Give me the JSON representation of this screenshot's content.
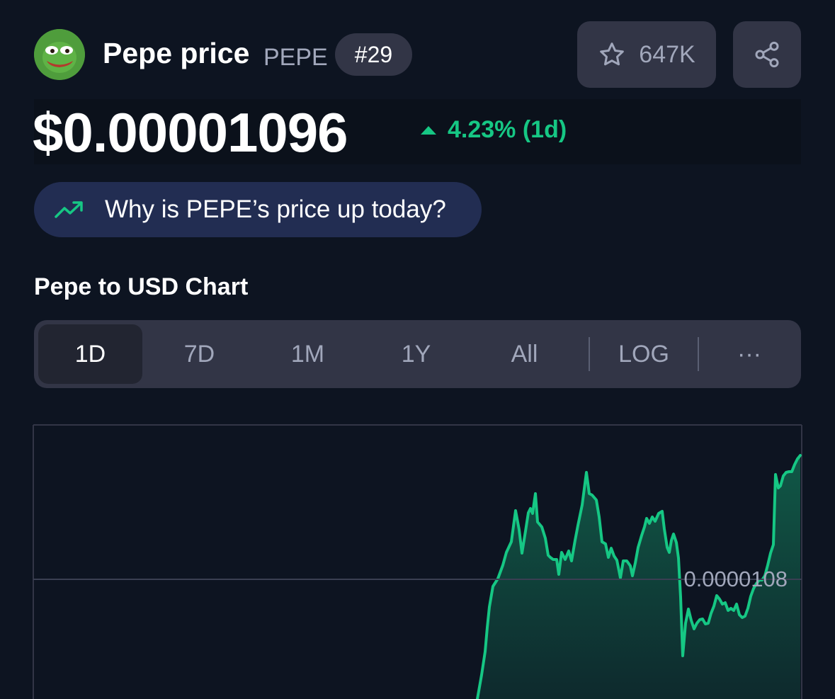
{
  "header": {
    "coin_name": "Pepe price",
    "symbol": "PEPE",
    "rank": "#29",
    "watchlist_count": "647K"
  },
  "price": {
    "value": "$0.00001096",
    "change": "4.23% (1d)",
    "direction": "up"
  },
  "why_prompt": "Why is PEPE’s price up today?",
  "chart_section": {
    "title": "Pepe to USD Chart",
    "tabs": [
      "1D",
      "7D",
      "1M",
      "1Y",
      "All",
      "LOG",
      "···"
    ],
    "active_tab": "1D",
    "reference_price_label": "0.0000108"
  },
  "colors": {
    "background": "#0d1421",
    "panel": "#323546",
    "positive": "#16c784",
    "muted_text": "#a1a7bb"
  },
  "icons": {
    "watchlist": "star-icon",
    "share": "share-icon",
    "trend": "trending-up-icon",
    "change": "caret-up-icon"
  }
}
